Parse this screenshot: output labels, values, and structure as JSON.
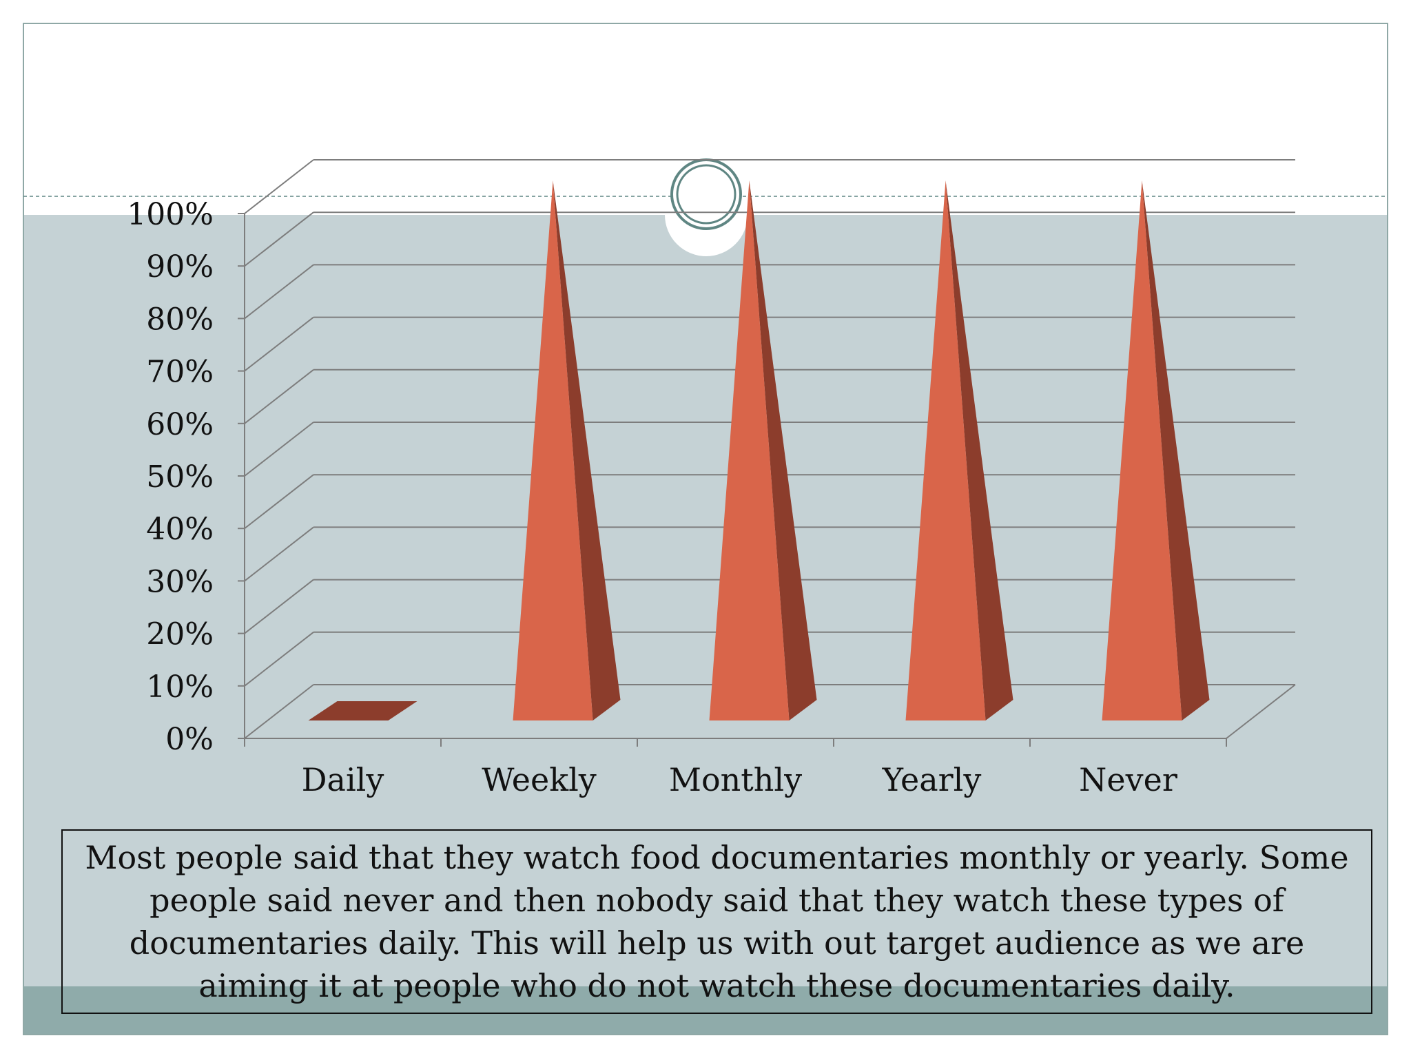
{
  "theme": {
    "background_top": "#ffffff",
    "background_main": "#c5d2d5",
    "footer_band": "#8fabaa",
    "frame_border": "#8fa8a6",
    "ornament": "#5f8683",
    "cone_front": "#d9654a",
    "cone_side": "#8c3d2c",
    "grid_line": "#7d7d7d"
  },
  "chart_data": {
    "type": "bar",
    "style": "3d-cone",
    "categories": [
      "Daily",
      "Weekly",
      "Monthly",
      "Yearly",
      "Never"
    ],
    "values": [
      0,
      100,
      100,
      100,
      100
    ],
    "unit": "%",
    "yticks": [
      "0%",
      "10%",
      "20%",
      "30%",
      "40%",
      "50%",
      "60%",
      "70%",
      "80%",
      "90%",
      "100%"
    ],
    "ylim": [
      0,
      100
    ],
    "grid": true,
    "legend": "none"
  },
  "caption": "Most people said that they watch food documentaries monthly or yearly. Some people said never and then nobody said that they watch these types of documentaries daily. This will help us with out target audience as we are aiming it at people who do not watch these documentaries daily."
}
